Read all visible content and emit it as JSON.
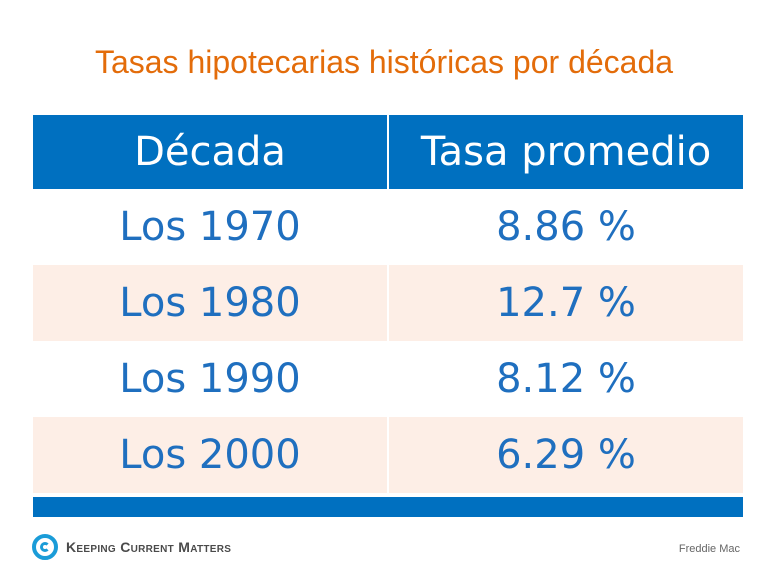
{
  "title": "Tasas hipotecarias históricas por década",
  "table": {
    "headers": [
      "Década",
      "Tasa promedio"
    ],
    "rows": [
      [
        "Los 1970",
        "8.86 %"
      ],
      [
        "Los 1980",
        "12.7 %"
      ],
      [
        "Los 1990",
        "8.12 %"
      ],
      [
        "Los 2000",
        "6.29 %"
      ]
    ]
  },
  "logo": {
    "text": "Keeping Current Matters"
  },
  "source": "Freddie Mac",
  "colors": {
    "title": "#e36c0a",
    "header_bg": "#0070c0",
    "cell_text": "#1f6fbf",
    "alt_row_bg": "#fdeee6"
  },
  "chart_data": {
    "type": "table",
    "title": "Tasas hipotecarias históricas por década",
    "columns": [
      "Década",
      "Tasa promedio"
    ],
    "categories": [
      "Los 1970",
      "Los 1980",
      "Los 1990",
      "Los 2000"
    ],
    "values": [
      8.86,
      12.7,
      8.12,
      6.29
    ],
    "unit": "%"
  }
}
